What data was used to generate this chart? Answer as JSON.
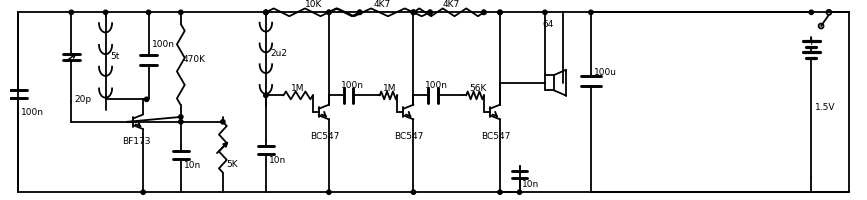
{
  "bg_color": "#ffffff",
  "line_color": "#000000",
  "lw": 1.3,
  "fig_w": 8.67,
  "fig_h": 2.0,
  "dpi": 100,
  "border": [
    8,
    8,
    859,
    192
  ]
}
